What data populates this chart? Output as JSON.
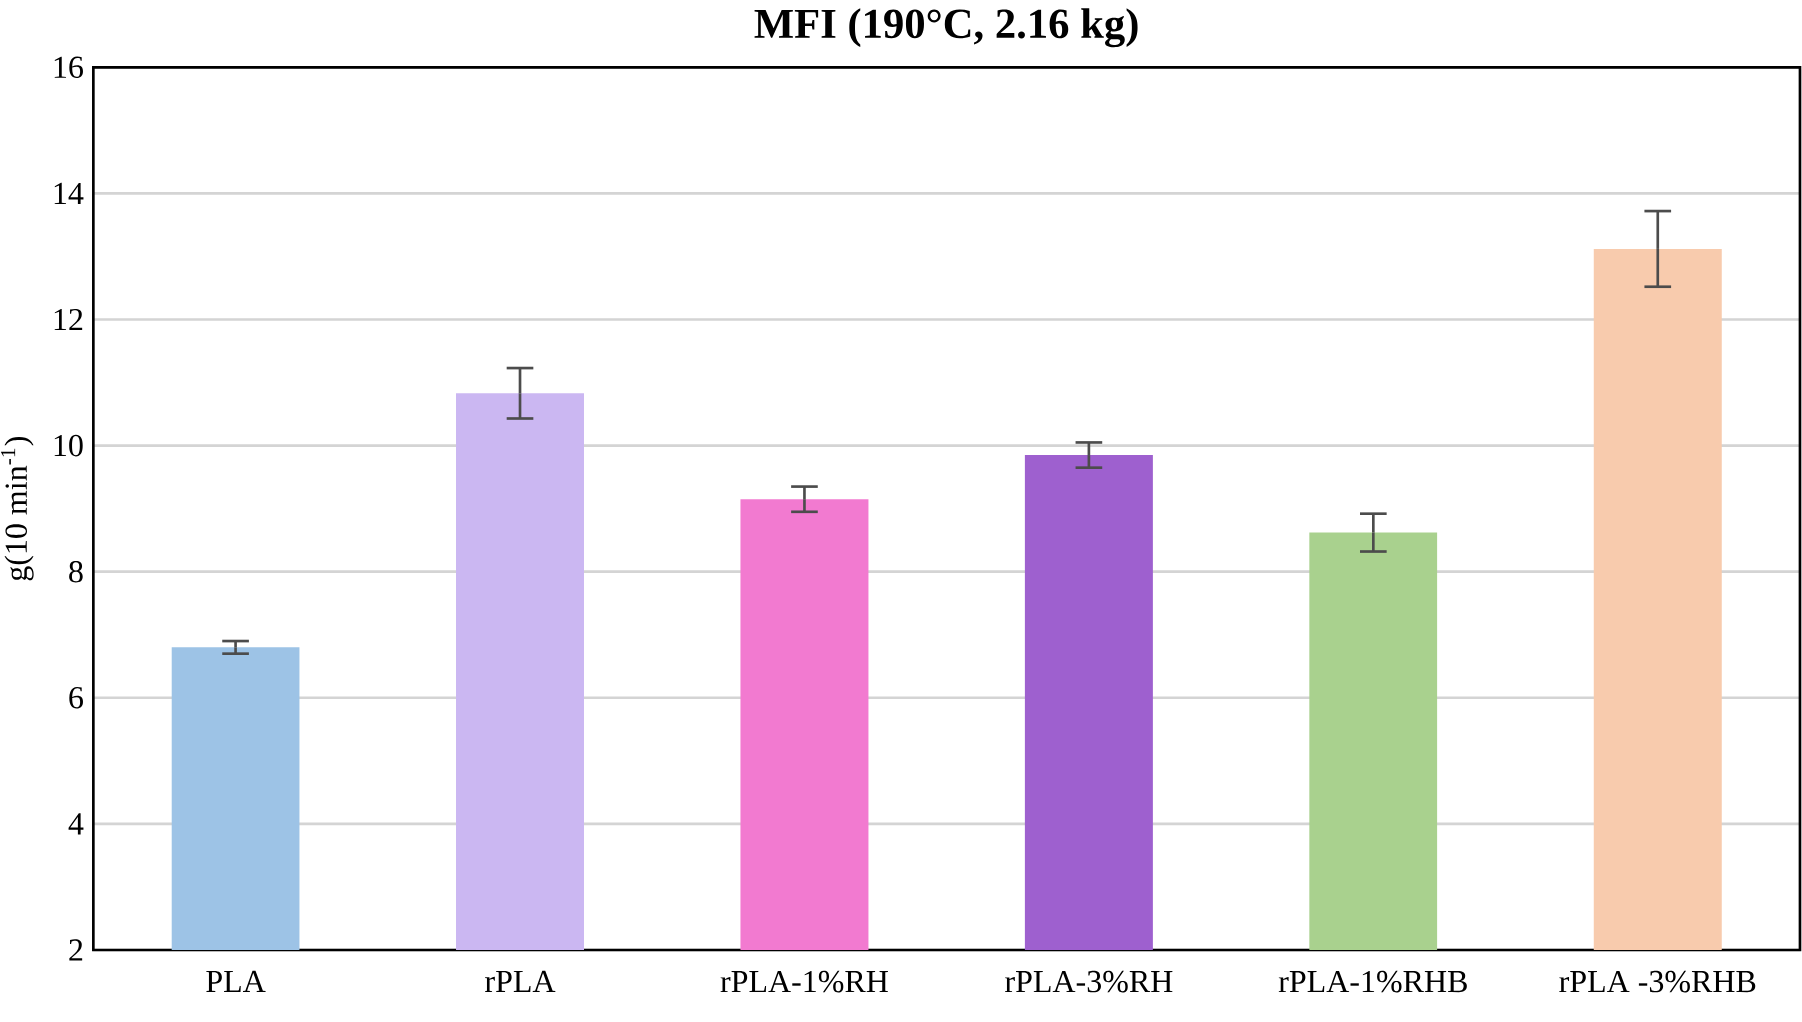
{
  "chart_data": {
    "type": "bar",
    "title": "MFI (190°C, 2.16 kg)",
    "ylabel": "g(10 min$^{-1}$)",
    "categories": [
      "PLA",
      "rPLA",
      "rPLA-1%RH",
      "rPLA-3%RH",
      "rPLA-1%RHB",
      "rPLA -3%RHB"
    ],
    "values": [
      6.8,
      10.83,
      9.15,
      9.85,
      8.62,
      13.12
    ],
    "errors": [
      0.1,
      0.4,
      0.2,
      0.2,
      0.3,
      0.6
    ],
    "colors": [
      "#9dc3e6",
      "#cbb7f2",
      "#f27ad0",
      "#9e60cf",
      "#a9d18e",
      "#f8cbad"
    ],
    "ylim": [
      2,
      16
    ],
    "yticks": [
      2,
      4,
      6,
      8,
      10,
      12,
      14,
      16
    ],
    "grid": "y"
  }
}
